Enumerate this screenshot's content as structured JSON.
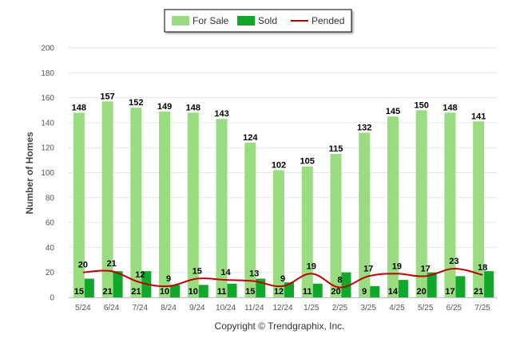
{
  "chart_data": {
    "type": "bar",
    "categories": [
      "5/24",
      "6/24",
      "7/24",
      "8/24",
      "9/24",
      "10/24",
      "11/24",
      "12/24",
      "1/25",
      "2/25",
      "3/25",
      "4/25",
      "5/25",
      "6/25",
      "7/25"
    ],
    "series": [
      {
        "name": "For Sale",
        "kind": "bar",
        "color": "#99dd80",
        "values": [
          148,
          157,
          152,
          149,
          148,
          143,
          124,
          102,
          105,
          115,
          132,
          145,
          150,
          148,
          141
        ]
      },
      {
        "name": "Sold",
        "kind": "bar",
        "color": "#0fa82a",
        "values": [
          15,
          21,
          21,
          10,
          10,
          11,
          15,
          12,
          11,
          20,
          9,
          14,
          20,
          17,
          21
        ]
      },
      {
        "name": "Pended",
        "kind": "line",
        "color": "#c00000",
        "values": [
          20,
          21,
          12,
          9,
          15,
          14,
          13,
          9,
          19,
          8,
          17,
          19,
          17,
          23,
          18
        ]
      }
    ],
    "ylabel": "Number of Homes",
    "xlabel": "",
    "ylim": [
      0,
      200
    ],
    "yticks": [
      0,
      20,
      40,
      60,
      80,
      100,
      120,
      140,
      160,
      180,
      200
    ],
    "legend_position": "top-center",
    "grid": true,
    "footer": "Copyright © Trendgraphix, Inc."
  }
}
